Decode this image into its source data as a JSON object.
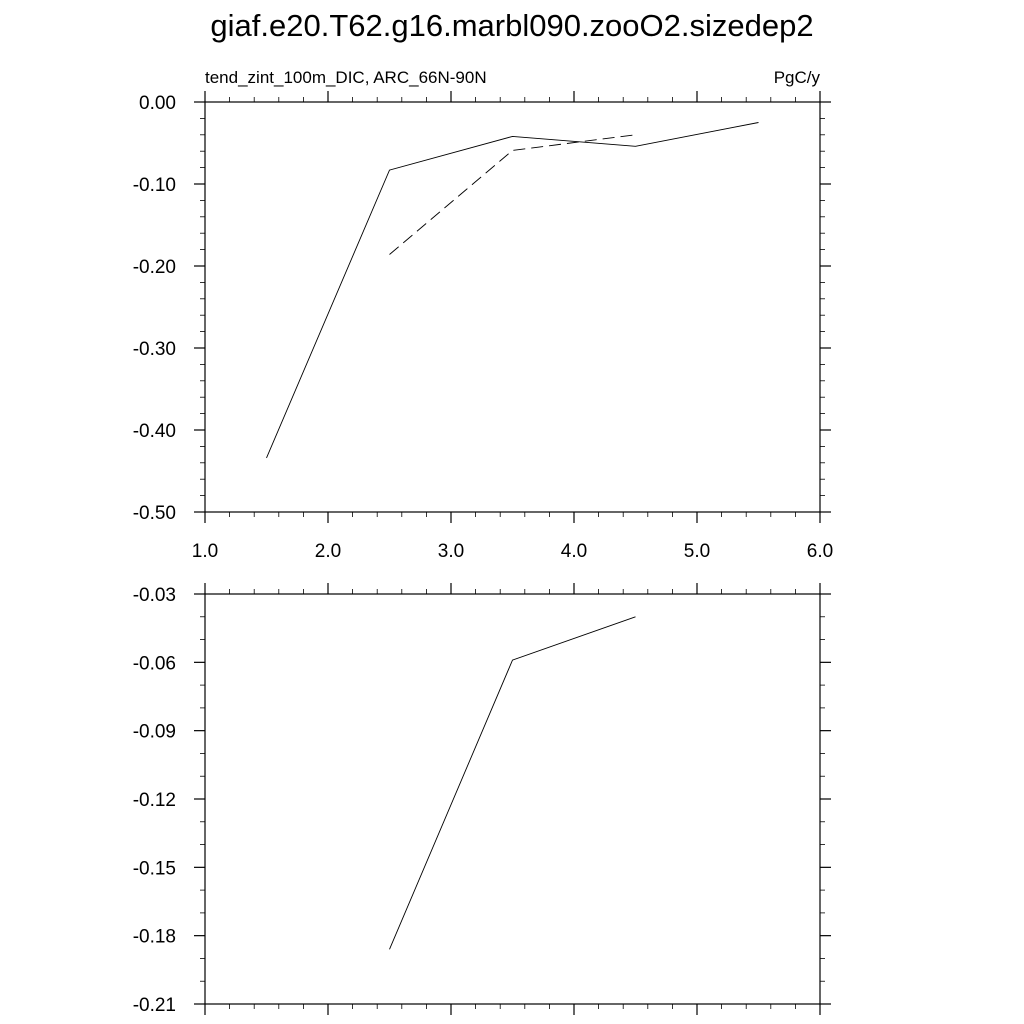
{
  "title": "giaf.e20.T62.g16.marbl090.zooO2.sizedep2",
  "chart_data": [
    {
      "type": "line",
      "left_label": "tend_zint_100m_DIC, ARC_66N-90N",
      "right_label": "PgC/y",
      "xlim": [
        1.0,
        6.0
      ],
      "ylim": [
        -0.5,
        0.0
      ],
      "x_ticks": [
        "1.0",
        "2.0",
        "3.0",
        "4.0",
        "5.0",
        "6.0"
      ],
      "y_ticks": [
        "0.00",
        "-0.10",
        "-0.20",
        "-0.30",
        "-0.40",
        "-0.50"
      ],
      "series": [
        {
          "style": "solid",
          "x": [
            1.5,
            2.5,
            3.5,
            4.5,
            5.5
          ],
          "y": [
            -0.434,
            -0.083,
            -0.042,
            -0.054,
            -0.025
          ]
        },
        {
          "style": "dashed",
          "x": [
            2.5,
            3.5,
            4.5
          ],
          "y": [
            -0.186,
            -0.059,
            -0.04
          ]
        }
      ]
    },
    {
      "type": "line",
      "xlim": [
        1.0,
        6.0
      ],
      "ylim": [
        -0.21,
        -0.03
      ],
      "y_ticks": [
        "-0.03",
        "-0.06",
        "-0.09",
        "-0.12",
        "-0.15",
        "-0.18",
        "-0.21"
      ],
      "series": [
        {
          "style": "solid",
          "x": [
            2.5,
            3.5,
            4.5
          ],
          "y": [
            -0.186,
            -0.059,
            -0.04
          ]
        }
      ]
    }
  ]
}
